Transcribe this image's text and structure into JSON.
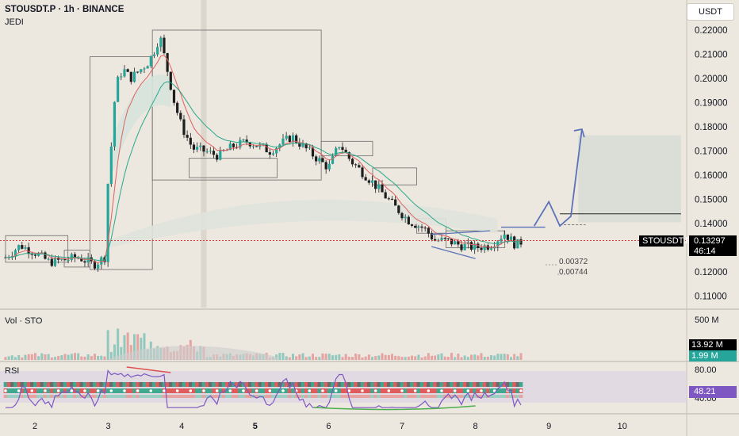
{
  "header": {
    "symbol_line": "STOUSDT.P · 1h · BINANCE",
    "indicator": "JEDI",
    "currency_button": "USDT"
  },
  "price_axis": {
    "ticks": [
      "0.22000",
      "0.21000",
      "0.20000",
      "0.19000",
      "0.18000",
      "0.17000",
      "0.16000",
      "0.15000",
      "0.14000",
      "0.13000",
      "0.12000",
      "0.11000"
    ]
  },
  "last_price": {
    "symbol": "STOUSDT.P",
    "price": "0.13297",
    "countdown": "46:14"
  },
  "annotations": {
    "stat_1": "0.00372",
    "stat_2": "0.00744"
  },
  "volume_pane": {
    "label": "Vol · STO",
    "axis_top": "500 M",
    "value_1": "13.92 M",
    "value_2": "1.99 M"
  },
  "rsi_pane": {
    "label": "RSI",
    "axis_top": "80.00",
    "axis_bottom": "40.00",
    "value": "48.21"
  },
  "time_axis": {
    "labels": [
      "2",
      "3",
      "4",
      "5",
      "6",
      "7",
      "8",
      "9",
      "10"
    ],
    "bold_label": "5"
  },
  "colors": {
    "up": "#26a69a",
    "down": "#ef5350",
    "background": "#ece7df",
    "ema_fast": "#e06060",
    "ema_slow": "#2aa88a",
    "projection": "#5a73b8",
    "rsi_line": "#7e57c2"
  },
  "chart_data": {
    "type": "candlestick",
    "ylim": [
      0.105,
      0.225
    ],
    "x_days": [
      2,
      3,
      4,
      5,
      6,
      7,
      8,
      9,
      10
    ],
    "close_path": [
      [
        1.6,
        0.126
      ],
      [
        1.8,
        0.131
      ],
      [
        2.0,
        0.128
      ],
      [
        2.2,
        0.124
      ],
      [
        2.4,
        0.125
      ],
      [
        2.6,
        0.126
      ],
      [
        2.8,
        0.123
      ],
      [
        2.95,
        0.126
      ],
      [
        3.0,
        0.16
      ],
      [
        3.05,
        0.175
      ],
      [
        3.1,
        0.197
      ],
      [
        3.2,
        0.204
      ],
      [
        3.3,
        0.2
      ],
      [
        3.45,
        0.204
      ],
      [
        3.55,
        0.207
      ],
      [
        3.65,
        0.213
      ],
      [
        3.7,
        0.218
      ],
      [
        3.8,
        0.204
      ],
      [
        3.9,
        0.19
      ],
      [
        4.0,
        0.18
      ],
      [
        4.15,
        0.171
      ],
      [
        4.3,
        0.17
      ],
      [
        4.5,
        0.168
      ],
      [
        4.7,
        0.172
      ],
      [
        4.9,
        0.174
      ],
      [
        5.2,
        0.17
      ],
      [
        5.5,
        0.176
      ],
      [
        5.8,
        0.168
      ],
      [
        6.0,
        0.163
      ],
      [
        6.15,
        0.173
      ],
      [
        6.3,
        0.166
      ],
      [
        6.6,
        0.157
      ],
      [
        6.9,
        0.147
      ],
      [
        7.1,
        0.141
      ],
      [
        7.3,
        0.138
      ],
      [
        7.45,
        0.133
      ],
      [
        7.6,
        0.133
      ],
      [
        7.8,
        0.131
      ],
      [
        8.0,
        0.13
      ],
      [
        8.2,
        0.131
      ],
      [
        8.4,
        0.136
      ],
      [
        8.55,
        0.131
      ],
      [
        8.65,
        0.133
      ]
    ],
    "projection_path": [
      [
        8.8,
        0.139
      ],
      [
        9.0,
        0.149
      ],
      [
        9.15,
        0.139
      ],
      [
        9.3,
        0.143
      ],
      [
        9.45,
        0.179
      ]
    ],
    "target_zone": {
      "x": [
        9.4,
        10.8
      ],
      "y": [
        0.1405,
        0.1765
      ]
    },
    "last_price": 0.13297
  }
}
